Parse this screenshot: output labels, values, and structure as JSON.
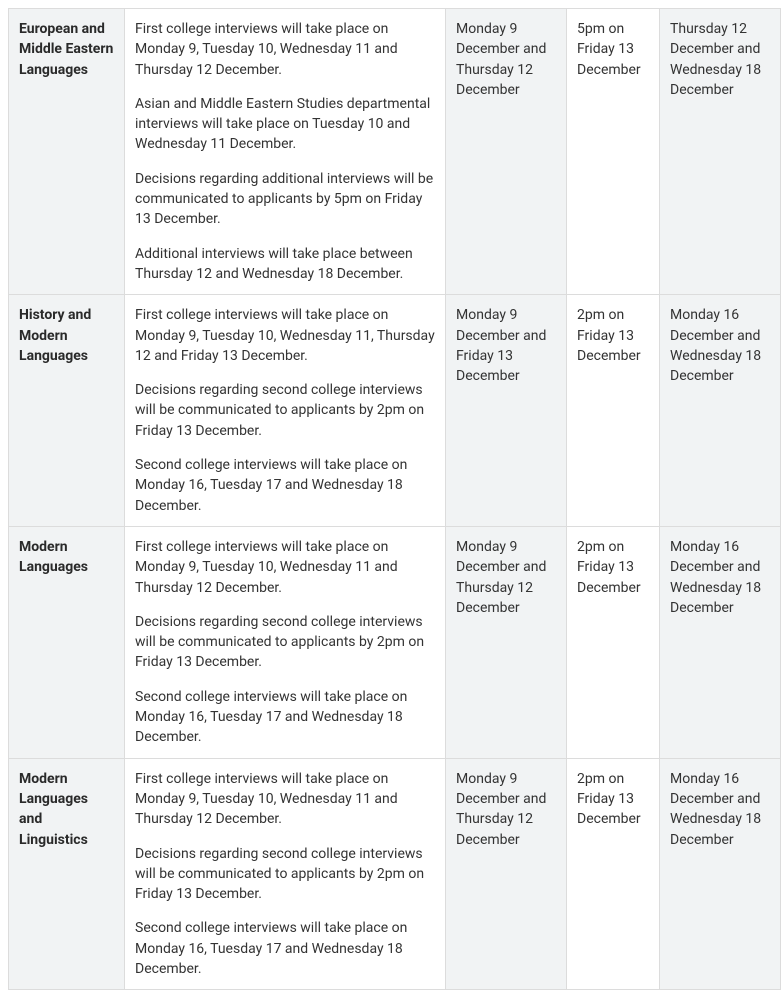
{
  "rows": [
    {
      "course": "European and Middle Eastern Languages",
      "desc": [
        "First college interviews will take place on Monday 9, Tuesday 10, Wednesday 11 and Thursday 12 December.",
        "Asian and Middle Eastern Studies departmental interviews will take place on Tuesday 10 and Wednesday 11 December.",
        "Decisions regarding additional interviews will be communicated to applicants by 5pm on Friday 13 December.",
        "Additional interviews will take place between Thursday 12 and Wednesday 18 December."
      ],
      "col3": "Monday 9 December and Thursday 12 December",
      "col4": "5pm on Friday 13 December",
      "col5": "Thursday 12 December and Wednesday 18 December"
    },
    {
      "course": "History and Modern Languages",
      "desc": [
        "First college interviews will take place on Monday 9, Tuesday 10, Wednesday 11, Thursday 12 and Friday 13 December.",
        "Decisions regarding second college interviews will be communicated to applicants by 2pm on Friday 13 December.",
        "Second college interviews will take place on Monday 16, Tuesday 17 and Wednesday 18 December."
      ],
      "col3": "Monday 9 December and Friday 13 December",
      "col4": "2pm on Friday 13 December",
      "col5": "Monday 16 December and Wednesday 18 December"
    },
    {
      "course": "Modern Languages",
      "desc": [
        "First college interviews will take place on Monday 9, Tuesday 10, Wednesday 11 and Thursday 12 December.",
        "Decisions regarding second college interviews will be communicated to applicants by 2pm on Friday 13 December.",
        "Second college interviews will take place on Monday 16, Tuesday 17 and Wednesday 18 December."
      ],
      "col3": "Monday 9 December and Thursday 12 December",
      "col4": "2pm on Friday 13 December",
      "col5": "Monday 16 December and Wednesday 18 December"
    },
    {
      "course": "Modern Languages and Linguistics",
      "desc": [
        "First college interviews will take place on Monday 9, Tuesday 10, Wednesday 11 and Thursday 12 December.",
        "Decisions regarding second college interviews will be communicated to applicants by 2pm on Friday 13 December.",
        "Second college interviews will take place on Monday 16, Tuesday 17 and Wednesday 18 December."
      ],
      "col3": "Monday 9 December and Thursday 12 December",
      "col4": "2pm on Friday 13 December",
      "col5": "Monday 16 December and Wednesday 18 December"
    }
  ]
}
